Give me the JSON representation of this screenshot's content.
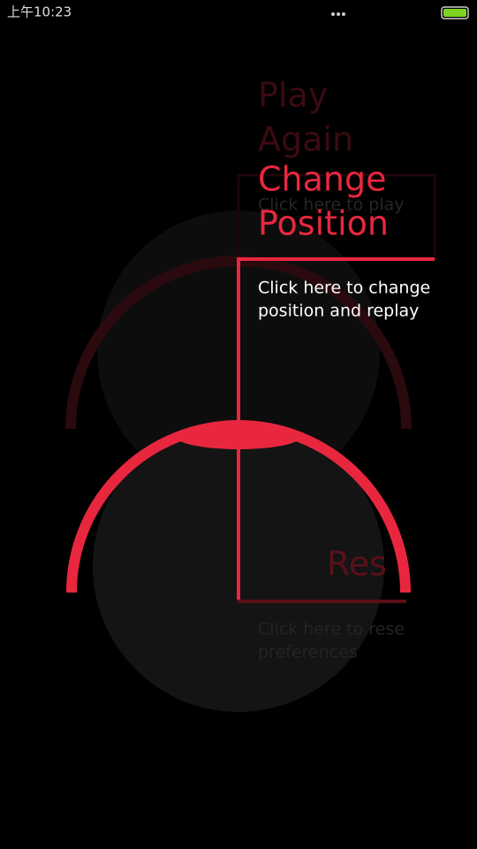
{
  "status": {
    "time": "上午10:23"
  },
  "items": [
    {
      "title": [
        "Play",
        "Again"
      ],
      "description": [
        "Click here to play"
      ]
    },
    {
      "title": [
        "Change",
        "Position"
      ],
      "description": [
        "Click here to change",
        "position and replay"
      ]
    },
    {
      "title": [
        "Res"
      ],
      "description": [
        "Click here to rese",
        "preferences"
      ]
    }
  ]
}
